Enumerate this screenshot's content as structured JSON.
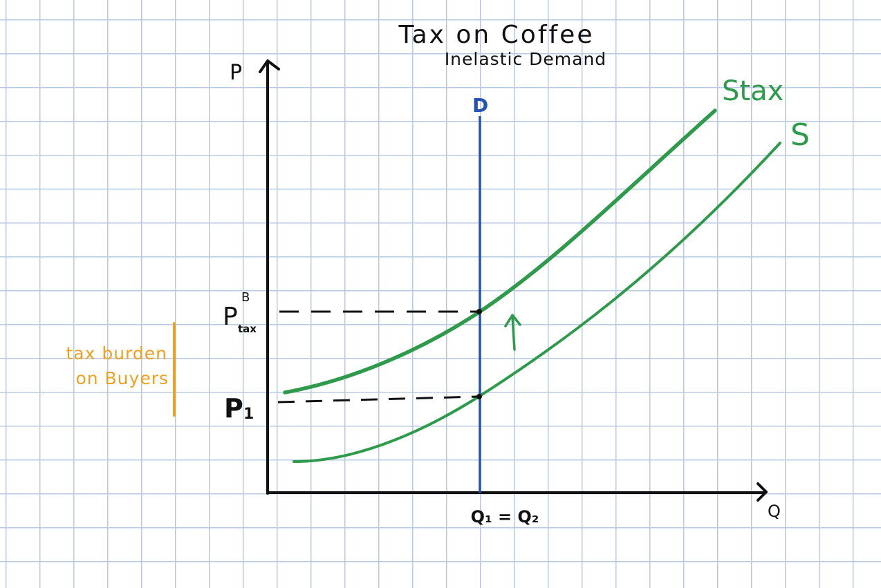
{
  "title": "Tax on Coffee",
  "subtitle": "Inelastic Demand",
  "axes": {
    "y_label": "P",
    "x_label": "Q"
  },
  "curves": {
    "demand_label": "D",
    "supply_label": "S",
    "supply_tax_label": "Stax"
  },
  "price_labels": {
    "p_tax_main": "P",
    "p_tax_sup": "B",
    "p_tax_sub": "tax",
    "p1": "P",
    "p1_sub": "1"
  },
  "quantity_label": "Q₁ = Q₂",
  "annotation": {
    "line1": "tax burden",
    "line2": "on Buyers"
  },
  "shift_arrow": "↑",
  "colors": {
    "supply": "#2e9a4b",
    "demand": "#2353b5",
    "annotation": "#f0a020",
    "axes": "#111111",
    "grid": "#b9c9e0"
  }
}
